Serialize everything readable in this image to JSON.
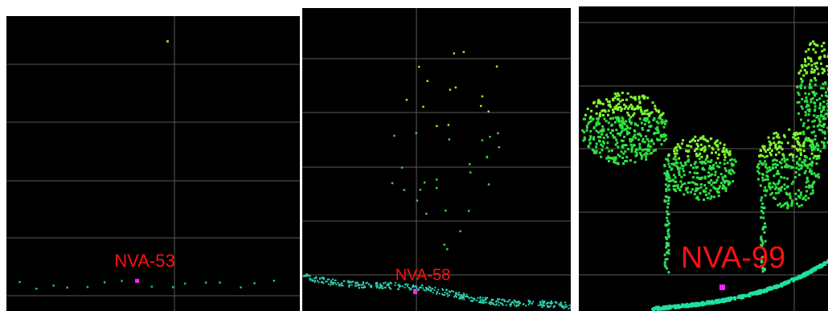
{
  "panels": [
    {
      "label": "NVA-53"
    },
    {
      "label": "NVA-58"
    },
    {
      "label": "NVA-99"
    }
  ]
}
